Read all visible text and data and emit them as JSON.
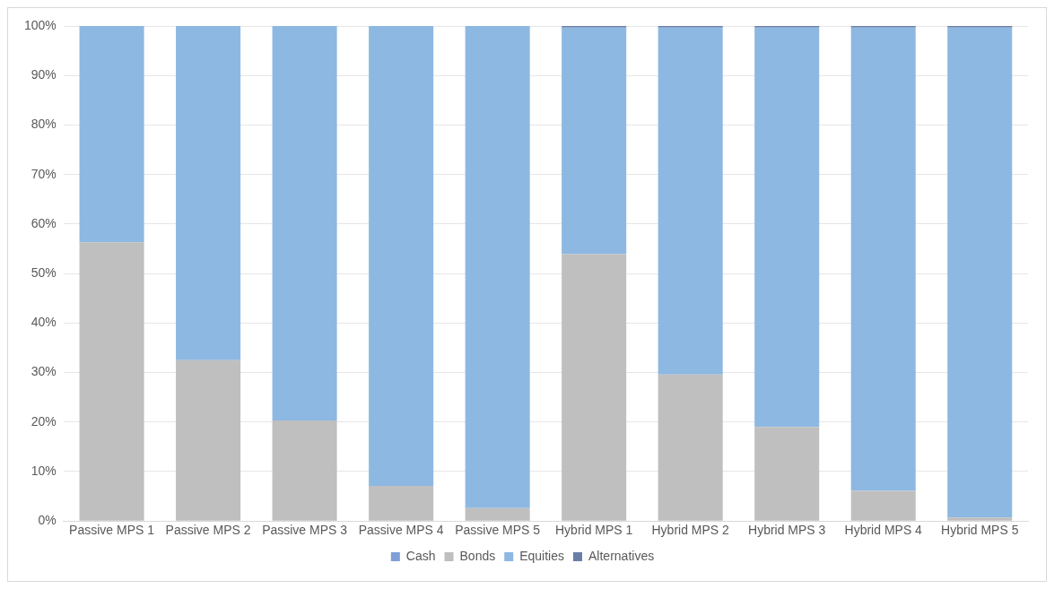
{
  "chart_data": {
    "type": "bar",
    "stacked": true,
    "categories": [
      "Passive MPS 1",
      "Passive MPS 2",
      "Passive MPS 3",
      "Passive MPS 4",
      "Passive MPS 5",
      "Hybrid MPS 1",
      "Hybrid MPS 2",
      "Hybrid MPS 3",
      "Hybrid MPS 4",
      "Hybrid MPS 5"
    ],
    "series": [
      {
        "name": "Cash",
        "color": "#7ea0d6",
        "values": [
          0,
          0,
          0,
          0,
          0,
          0,
          0,
          0,
          0,
          0
        ]
      },
      {
        "name": "Bonds",
        "color": "#bfbfbf",
        "values": [
          56.3,
          32.5,
          20.3,
          7.1,
          2.6,
          53.9,
          29.6,
          19.0,
          6.1,
          0.7
        ]
      },
      {
        "name": "Equities",
        "color": "#8db8e2",
        "values": [
          43.7,
          67.5,
          79.7,
          92.9,
          97.4,
          45.8,
          70.1,
          80.7,
          93.6,
          99.0
        ]
      },
      {
        "name": "Alternatives",
        "color": "#6a7fa8",
        "values": [
          0,
          0,
          0,
          0,
          0,
          0.3,
          0.3,
          0.3,
          0.3,
          0.3
        ]
      }
    ],
    "ylim": [
      0,
      100
    ],
    "yticks": [
      {
        "value": 0,
        "label": "0%"
      },
      {
        "value": 10,
        "label": "10%"
      },
      {
        "value": 20,
        "label": "20%"
      },
      {
        "value": 30,
        "label": "30%"
      },
      {
        "value": 40,
        "label": "40%"
      },
      {
        "value": 50,
        "label": "50%"
      },
      {
        "value": 60,
        "label": "60%"
      },
      {
        "value": 70,
        "label": "70%"
      },
      {
        "value": 80,
        "label": "80%"
      },
      {
        "value": 90,
        "label": "90%"
      },
      {
        "value": 100,
        "label": "100%"
      }
    ],
    "grid": "y",
    "legend": "bottom"
  }
}
